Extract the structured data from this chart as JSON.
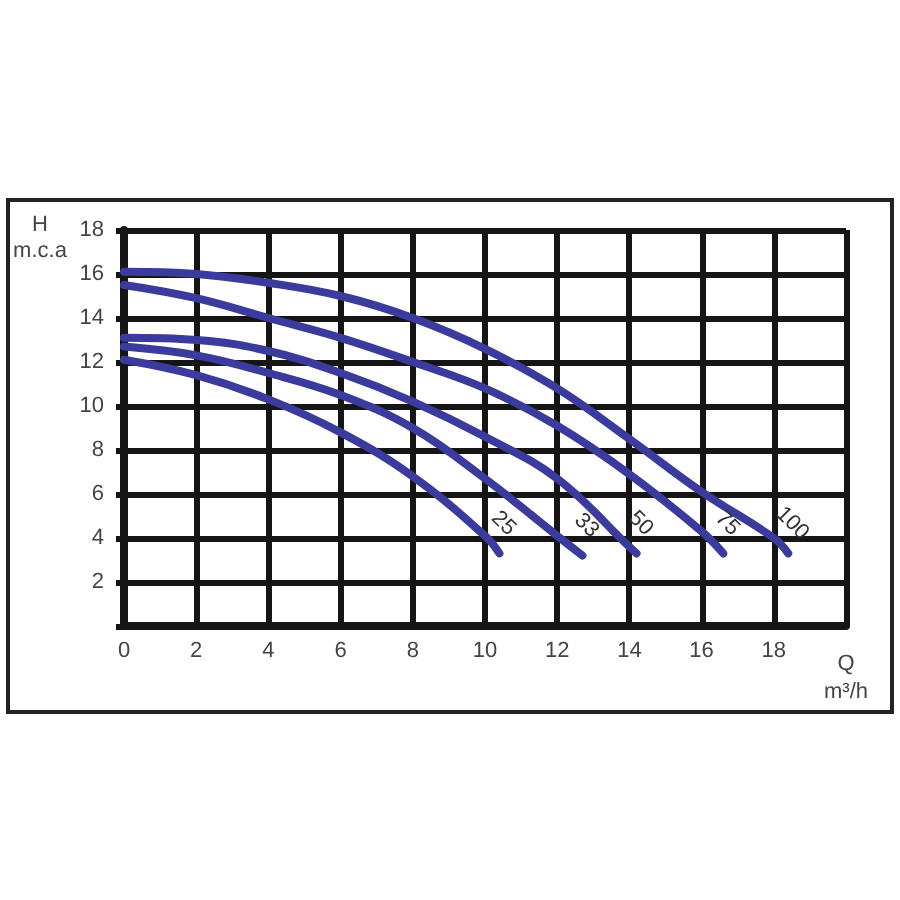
{
  "chart_data": {
    "type": "line",
    "xlabel": "Q\nm³/h",
    "ylabel": "H\nm.c.a",
    "xlim": [
      0,
      20
    ],
    "xticks": [
      0,
      2,
      4,
      6,
      8,
      10,
      12,
      14,
      16,
      18,
      {
        "value": 20,
        "label": null
      }
    ],
    "ylim": [
      0,
      18
    ],
    "yticks": [
      {
        "value": 0,
        "label": null
      },
      2,
      4,
      6,
      8,
      10,
      12,
      14,
      16,
      18
    ],
    "grid": true,
    "marker": "none",
    "series": [
      {
        "name": "25",
        "color": "#3b3b9e",
        "x": [
          0,
          2,
          4,
          6,
          8,
          10,
          10.4
        ],
        "values": [
          12.1,
          11.4,
          10.3,
          8.8,
          6.8,
          4.1,
          3.3
        ]
      },
      {
        "name": "33",
        "color": "#3b3b9e",
        "x": [
          0,
          2,
          4,
          6,
          8,
          10,
          12,
          12.7
        ],
        "values": [
          12.7,
          12.3,
          11.5,
          10.5,
          9.0,
          6.7,
          4.1,
          3.2
        ]
      },
      {
        "name": "50",
        "color": "#3b3b9e",
        "x": [
          0,
          2,
          4,
          6,
          8,
          10,
          12,
          14,
          14.2
        ],
        "values": [
          13.1,
          13.0,
          12.5,
          11.5,
          10.2,
          8.6,
          6.7,
          3.6,
          3.3
        ]
      },
      {
        "name": "75",
        "color": "#3b3b9e",
        "x": [
          0,
          2,
          4,
          6,
          8,
          10,
          12,
          14,
          16,
          16.6
        ],
        "values": [
          15.5,
          14.9,
          14.0,
          13.1,
          12.0,
          10.8,
          9.1,
          6.9,
          4.3,
          3.3
        ]
      },
      {
        "name": "100",
        "color": "#3b3b9e",
        "x": [
          0,
          2,
          4,
          6,
          8,
          10,
          12,
          14,
          16,
          18,
          18.4
        ],
        "values": [
          16.1,
          16.0,
          15.6,
          15.0,
          14.0,
          12.6,
          10.8,
          8.5,
          6.1,
          4.0,
          3.3
        ]
      }
    ]
  }
}
